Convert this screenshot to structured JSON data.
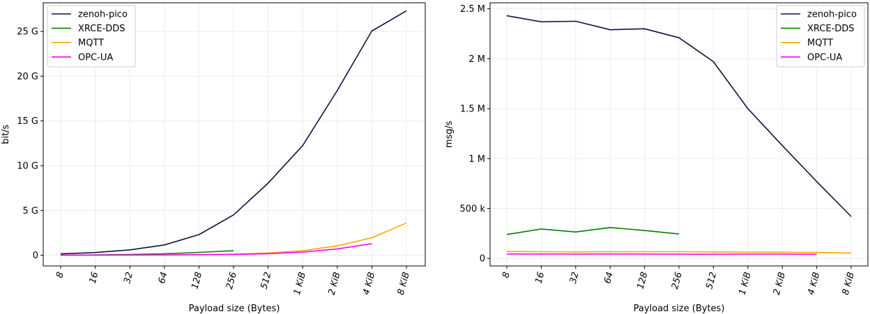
{
  "chart_data": [
    {
      "type": "line",
      "xlabel": "Payload size (Bytes)",
      "ylabel": "bit/s",
      "categories": [
        "8",
        "16",
        "32",
        "64",
        "128",
        "256",
        "512",
        "1 KiB",
        "2 KiB",
        "4 KiB",
        "8 KiB"
      ],
      "yticks": [
        0,
        5,
        10,
        15,
        20,
        25
      ],
      "ytick_labels": [
        "0",
        "5 G",
        "10 G",
        "15 G",
        "20 G",
        "25 G"
      ],
      "ylim": [
        -1.2,
        28.2
      ],
      "grid": true,
      "legend_position": "top-left",
      "series": [
        {
          "name": "zenoh-pico",
          "color": "#0b1340",
          "values": [
            0.15,
            0.3,
            0.6,
            1.15,
            2.3,
            4.5,
            8.05,
            12.25,
            18.4,
            25.05,
            27.3
          ]
        },
        {
          "name": "XRCE-DDS",
          "color": "#008000",
          "values": [
            0.02,
            0.04,
            0.08,
            0.16,
            0.32,
            0.5,
            null,
            null,
            null,
            null,
            null
          ]
        },
        {
          "name": "MQTT",
          "color": "#ffa500",
          "values": [
            0.0,
            0.01,
            0.02,
            0.04,
            0.08,
            0.12,
            0.25,
            0.5,
            1.05,
            1.95,
            3.6
          ]
        },
        {
          "name": "OPC-UA",
          "color": "#ff00ff",
          "values": [
            0.0,
            0.01,
            0.02,
            0.03,
            0.06,
            0.09,
            0.17,
            0.35,
            0.7,
            1.3,
            null
          ]
        }
      ]
    },
    {
      "type": "line",
      "xlabel": "Payload size (Bytes)",
      "ylabel": "msg/s",
      "categories": [
        "8",
        "16",
        "32",
        "64",
        "128",
        "256",
        "512",
        "1 KiB",
        "2 KiB",
        "4 KiB",
        "8 KiB"
      ],
      "yticks": [
        0,
        500000,
        1000000,
        1500000,
        2000000,
        2500000
      ],
      "ytick_labels": [
        "0",
        "500 k",
        "1 M",
        "1.5 M",
        "2 M",
        "2.5 M"
      ],
      "ylim": [
        -75000,
        2560000
      ],
      "grid": true,
      "legend_position": "top-right",
      "series": [
        {
          "name": "zenoh-pico",
          "color": "#0b1340",
          "values": [
            2430000,
            2370000,
            2375000,
            2290000,
            2300000,
            2210000,
            1970000,
            1500000,
            1130000,
            770000,
            420000
          ]
        },
        {
          "name": "XRCE-DDS",
          "color": "#008000",
          "values": [
            240000,
            295000,
            265000,
            310000,
            280000,
            245000,
            null,
            null,
            null,
            null,
            null
          ]
        },
        {
          "name": "MQTT",
          "color": "#ffa500",
          "values": [
            70000,
            68000,
            66000,
            67000,
            67000,
            68000,
            65000,
            64000,
            63000,
            60000,
            55000
          ]
        },
        {
          "name": "OPC-UA",
          "color": "#ff00ff",
          "values": [
            45000,
            45000,
            44000,
            45000,
            44000,
            43000,
            42000,
            44000,
            44000,
            42000,
            null
          ]
        }
      ]
    }
  ]
}
